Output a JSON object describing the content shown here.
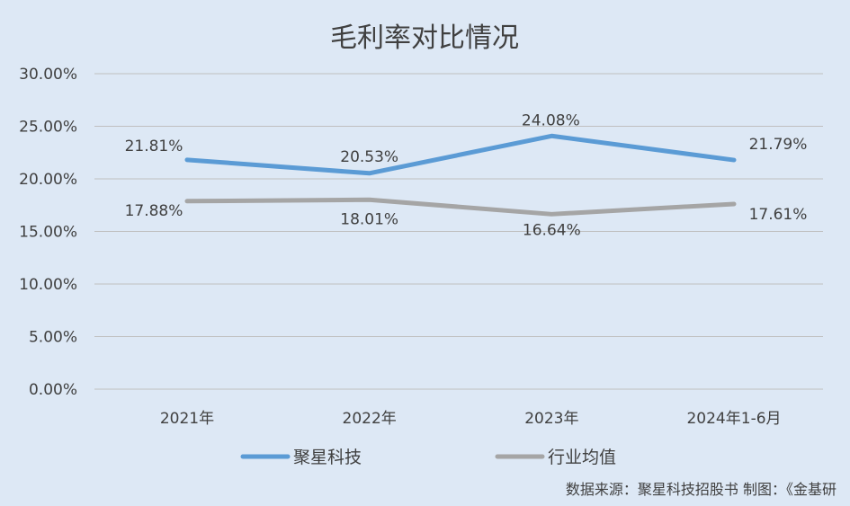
{
  "chart_data": {
    "type": "line",
    "title": "毛利率对比情况",
    "categories": [
      "2021年",
      "2022年",
      "2023年",
      "2024年1-6月"
    ],
    "series": [
      {
        "name": "聚星科技",
        "values": [
          21.81,
          20.53,
          24.08,
          21.79
        ],
        "labels": [
          "21.81%",
          "20.53%",
          "24.08%",
          "21.79%"
        ],
        "color": "#5b9bd5"
      },
      {
        "name": "行业均值",
        "values": [
          17.88,
          18.01,
          16.64,
          17.61
        ],
        "labels": [
          "17.88%",
          "18.01%",
          "16.64%",
          "17.61%"
        ],
        "color": "#a5a5a5"
      }
    ],
    "yticks": [
      "0.00%",
      "5.00%",
      "10.00%",
      "15.00%",
      "20.00%",
      "25.00%",
      "30.00%"
    ],
    "ylim": [
      0,
      30
    ],
    "grid": true,
    "legend_position": "bottom"
  },
  "source_note": "数据来源：聚星科技招股书   制图：《金基研"
}
